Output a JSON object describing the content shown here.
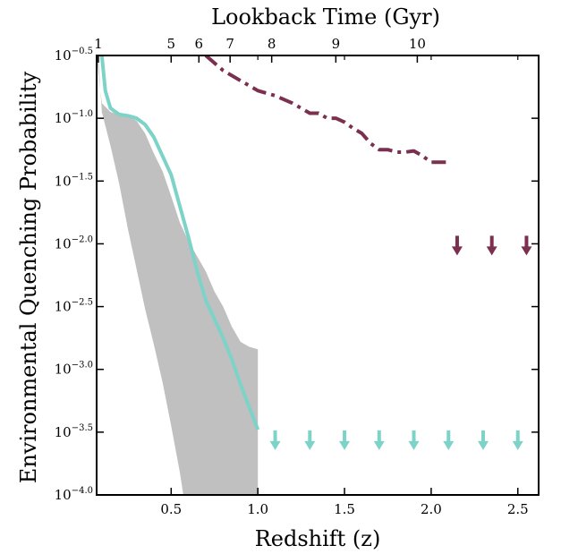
{
  "chart_data": {
    "type": "line",
    "xlabel": "Redshift (z)",
    "ylabel": "Environmental Quenching Probability",
    "top_axis_label": "Lookback Time (Gyr)",
    "xlim": [
      0.07,
      2.62
    ],
    "ylim": [
      -4.0,
      -0.5
    ],
    "y_scale": "log",
    "grid": false,
    "x_ticks": [
      {
        "value": 0.5,
        "label": "0.5"
      },
      {
        "value": 1.0,
        "label": "1.0"
      },
      {
        "value": 1.5,
        "label": "1.5"
      },
      {
        "value": 2.0,
        "label": "2.0"
      },
      {
        "value": 2.5,
        "label": "2.5"
      }
    ],
    "y_ticks": [
      {
        "value": -4.0,
        "label": "10",
        "exp": "−4.0"
      },
      {
        "value": -3.5,
        "label": "10",
        "exp": "−3.5"
      },
      {
        "value": -3.0,
        "label": "10",
        "exp": "−3.0"
      },
      {
        "value": -2.5,
        "label": "10",
        "exp": "−2.5"
      },
      {
        "value": -2.0,
        "label": "10",
        "exp": "−2.0"
      },
      {
        "value": -1.5,
        "label": "10",
        "exp": "−1.5"
      },
      {
        "value": -1.0,
        "label": "10",
        "exp": "−1.0"
      },
      {
        "value": -0.5,
        "label": "10",
        "exp": "−0.5"
      }
    ],
    "top_ticks": [
      {
        "z": 0.08,
        "label": "1"
      },
      {
        "z": 0.5,
        "label": "5"
      },
      {
        "z": 0.66,
        "label": "6"
      },
      {
        "z": 0.84,
        "label": "7"
      },
      {
        "z": 1.08,
        "label": "8"
      },
      {
        "z": 1.45,
        "label": "9"
      },
      {
        "z": 1.92,
        "label": "10"
      }
    ],
    "colors": {
      "teal": "#7dd3c8",
      "maroon": "#7b3050",
      "band": "#c0c0c0"
    },
    "band": {
      "upper": [
        [
          0.07,
          -0.5
        ],
        [
          0.1,
          -0.88
        ],
        [
          0.15,
          -0.95
        ],
        [
          0.2,
          -0.97
        ],
        [
          0.25,
          -0.98
        ],
        [
          0.3,
          -1.02
        ],
        [
          0.35,
          -1.12
        ],
        [
          0.4,
          -1.28
        ],
        [
          0.45,
          -1.42
        ],
        [
          0.5,
          -1.62
        ],
        [
          0.55,
          -1.83
        ],
        [
          0.6,
          -1.98
        ],
        [
          0.65,
          -2.1
        ],
        [
          0.7,
          -2.22
        ],
        [
          0.75,
          -2.38
        ],
        [
          0.8,
          -2.5
        ],
        [
          0.85,
          -2.66
        ],
        [
          0.9,
          -2.78
        ],
        [
          0.95,
          -2.82
        ],
        [
          1.0,
          -2.84
        ],
        [
          1.0,
          -4.0
        ]
      ],
      "lower": [
        [
          0.07,
          -0.5
        ],
        [
          0.08,
          -0.52
        ],
        [
          0.1,
          -0.95
        ],
        [
          0.15,
          -1.22
        ],
        [
          0.2,
          -1.52
        ],
        [
          0.25,
          -1.88
        ],
        [
          0.3,
          -2.2
        ],
        [
          0.35,
          -2.52
        ],
        [
          0.4,
          -2.8
        ],
        [
          0.45,
          -3.1
        ],
        [
          0.5,
          -3.45
        ],
        [
          0.55,
          -3.82
        ],
        [
          0.57,
          -4.0
        ]
      ]
    },
    "series": [
      {
        "style": "solid",
        "color": "#7dd3c8",
        "points": [
          [
            0.1,
            -0.5
          ],
          [
            0.12,
            -0.78
          ],
          [
            0.15,
            -0.92
          ],
          [
            0.2,
            -0.97
          ],
          [
            0.25,
            -0.98
          ],
          [
            0.3,
            -1.0
          ],
          [
            0.35,
            -1.05
          ],
          [
            0.4,
            -1.15
          ],
          [
            0.45,
            -1.3
          ],
          [
            0.5,
            -1.45
          ],
          [
            0.55,
            -1.7
          ],
          [
            0.6,
            -1.95
          ],
          [
            0.65,
            -2.22
          ],
          [
            0.7,
            -2.45
          ],
          [
            0.75,
            -2.6
          ],
          [
            0.8,
            -2.75
          ],
          [
            0.85,
            -2.92
          ],
          [
            0.9,
            -3.12
          ],
          [
            0.95,
            -3.3
          ],
          [
            1.0,
            -3.48
          ]
        ]
      },
      {
        "style": "dash-dot",
        "color": "#7b3050",
        "points": [
          [
            0.7,
            -0.5
          ],
          [
            0.8,
            -0.62
          ],
          [
            0.9,
            -0.7
          ],
          [
            1.0,
            -0.78
          ],
          [
            1.1,
            -0.82
          ],
          [
            1.2,
            -0.88
          ],
          [
            1.3,
            -0.96
          ],
          [
            1.35,
            -0.96
          ],
          [
            1.4,
            -1.0
          ],
          [
            1.45,
            -1.0
          ],
          [
            1.5,
            -1.03
          ],
          [
            1.55,
            -1.08
          ],
          [
            1.6,
            -1.12
          ],
          [
            1.65,
            -1.2
          ],
          [
            1.7,
            -1.25
          ],
          [
            1.75,
            -1.25
          ],
          [
            1.8,
            -1.27
          ],
          [
            1.85,
            -1.27
          ],
          [
            1.9,
            -1.26
          ],
          [
            1.95,
            -1.3
          ],
          [
            2.0,
            -1.35
          ],
          [
            2.1,
            -1.35
          ]
        ]
      }
    ],
    "upper_limits": [
      {
        "color": "#7dd3c8",
        "y": -3.55,
        "x": [
          1.1,
          1.3,
          1.5,
          1.7,
          1.9,
          2.1,
          2.3,
          2.5
        ]
      },
      {
        "color": "#7b3050",
        "y": -2.0,
        "x": [
          2.15,
          2.35,
          2.55
        ]
      }
    ]
  }
}
